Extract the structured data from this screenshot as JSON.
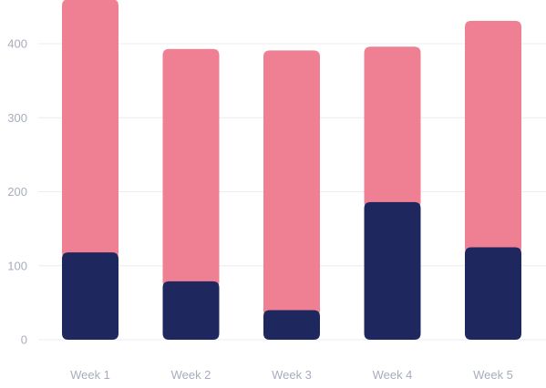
{
  "chart_data": {
    "type": "bar",
    "stacked": true,
    "categories": [
      "Week 1",
      "Week 2",
      "Week 3",
      "Week 4",
      "Week 5"
    ],
    "series": [
      {
        "values": [
          118,
          79,
          40,
          186,
          125
        ],
        "color": "#1e285e"
      },
      {
        "values": [
          342,
          314,
          351,
          210,
          306
        ],
        "color": "#ef8093"
      }
    ],
    "y_ticks": [
      "0",
      "100",
      "200",
      "300",
      "400"
    ],
    "ylim": [
      0,
      460
    ],
    "grid": true,
    "legend": "none"
  },
  "colors": {
    "grid": "#ececf1",
    "tick_text": "#a8adbc",
    "background": "#ffffff"
  }
}
